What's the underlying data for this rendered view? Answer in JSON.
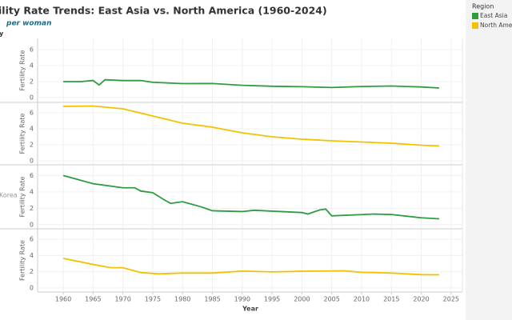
{
  "title": "ility Rate Trends: East Asia vs. North America (1960-2024)",
  "subtitle": "per woman",
  "row_header": "y",
  "legend_title": "Region",
  "xlabel": "Year",
  "chart_data": [
    {
      "type": "line",
      "ylabel": "Fertility Rate",
      "ylim": [
        -0.6,
        7.4
      ],
      "yticks": [
        0,
        2,
        4,
        6
      ],
      "xlim": [
        1955.7,
        2026.9
      ],
      "xticks": [
        1960,
        1965,
        1970,
        1975,
        1980,
        1985,
        1990,
        1995,
        2000,
        2005,
        2010,
        2015,
        2020,
        2025
      ],
      "grid": true,
      "x": [
        1960,
        1963,
        1965,
        1966,
        1967,
        1970,
        1973,
        1975,
        1980,
        1985,
        1990,
        1995,
        2000,
        2005,
        2010,
        2015,
        2020,
        2023
      ],
      "series": [
        {
          "name": "East Asia",
          "color": "#2e9c3f",
          "values": [
            2.0,
            2.0,
            2.14,
            1.58,
            2.23,
            2.13,
            2.14,
            1.91,
            1.75,
            1.76,
            1.54,
            1.42,
            1.36,
            1.26,
            1.39,
            1.45,
            1.33,
            1.2
          ]
        }
      ]
    },
    {
      "type": "line",
      "ylabel": "Fertility Rate",
      "ylim": [
        -0.5,
        7.3
      ],
      "yticks": [
        0,
        2,
        4,
        6
      ],
      "xlim": [
        1955.7,
        2026.9
      ],
      "xticks": [
        1960,
        1965,
        1970,
        1975,
        1980,
        1985,
        1990,
        1995,
        2000,
        2005,
        2010,
        2015,
        2020,
        2025
      ],
      "grid": true,
      "x": [
        1960,
        1965,
        1970,
        1975,
        1980,
        1985,
        1990,
        1995,
        2000,
        2005,
        2010,
        2015,
        2020,
        2023
      ],
      "series": [
        {
          "name": "North America",
          "color": "#f2c200",
          "values": [
            6.8,
            6.85,
            6.5,
            5.6,
            4.7,
            4.2,
            3.5,
            3.0,
            2.7,
            2.5,
            2.35,
            2.2,
            1.95,
            1.85
          ]
        }
      ]
    },
    {
      "type": "line",
      "ylabel": "Fertility Rate",
      "row_label": "Korea",
      "ylim": [
        -0.5,
        7.3
      ],
      "yticks": [
        0,
        2,
        4,
        6
      ],
      "xlim": [
        1955.7,
        2026.9
      ],
      "xticks": [
        1960,
        1965,
        1970,
        1975,
        1980,
        1985,
        1990,
        1995,
        2000,
        2005,
        2010,
        2015,
        2020,
        2025
      ],
      "grid": true,
      "x": [
        1960,
        1965,
        1970,
        1972,
        1973,
        1975,
        1977,
        1978,
        1980,
        1983,
        1985,
        1990,
        1992,
        1995,
        2000,
        2001,
        2003,
        2004,
        2005,
        2010,
        2012,
        2015,
        2020,
        2023
      ],
      "series": [
        {
          "name": "East Asia",
          "color": "#2e9c3f",
          "values": [
            6.0,
            5.0,
            4.5,
            4.5,
            4.1,
            3.9,
            3.0,
            2.6,
            2.8,
            2.2,
            1.7,
            1.6,
            1.76,
            1.65,
            1.48,
            1.3,
            1.8,
            1.9,
            1.08,
            1.23,
            1.3,
            1.24,
            0.84,
            0.72
          ]
        }
      ]
    },
    {
      "type": "line",
      "ylabel": "Fertility Rate",
      "ylim": [
        -0.5,
        7.3
      ],
      "yticks": [
        0,
        2,
        4,
        6
      ],
      "xlim": [
        1955.7,
        2026.9
      ],
      "xticks": [
        1960,
        1965,
        1970,
        1975,
        1980,
        1985,
        1990,
        1995,
        2000,
        2005,
        2010,
        2015,
        2020,
        2025
      ],
      "grid": true,
      "x": [
        1960,
        1965,
        1968,
        1970,
        1973,
        1976,
        1980,
        1985,
        1990,
        1995,
        2000,
        2007,
        2010,
        2015,
        2020,
        2023
      ],
      "series": [
        {
          "name": "North America",
          "color": "#f2c200",
          "values": [
            3.65,
            2.9,
            2.5,
            2.5,
            1.9,
            1.74,
            1.84,
            1.84,
            2.08,
            1.98,
            2.06,
            2.12,
            1.93,
            1.84,
            1.64,
            1.62
          ]
        }
      ]
    }
  ]
}
